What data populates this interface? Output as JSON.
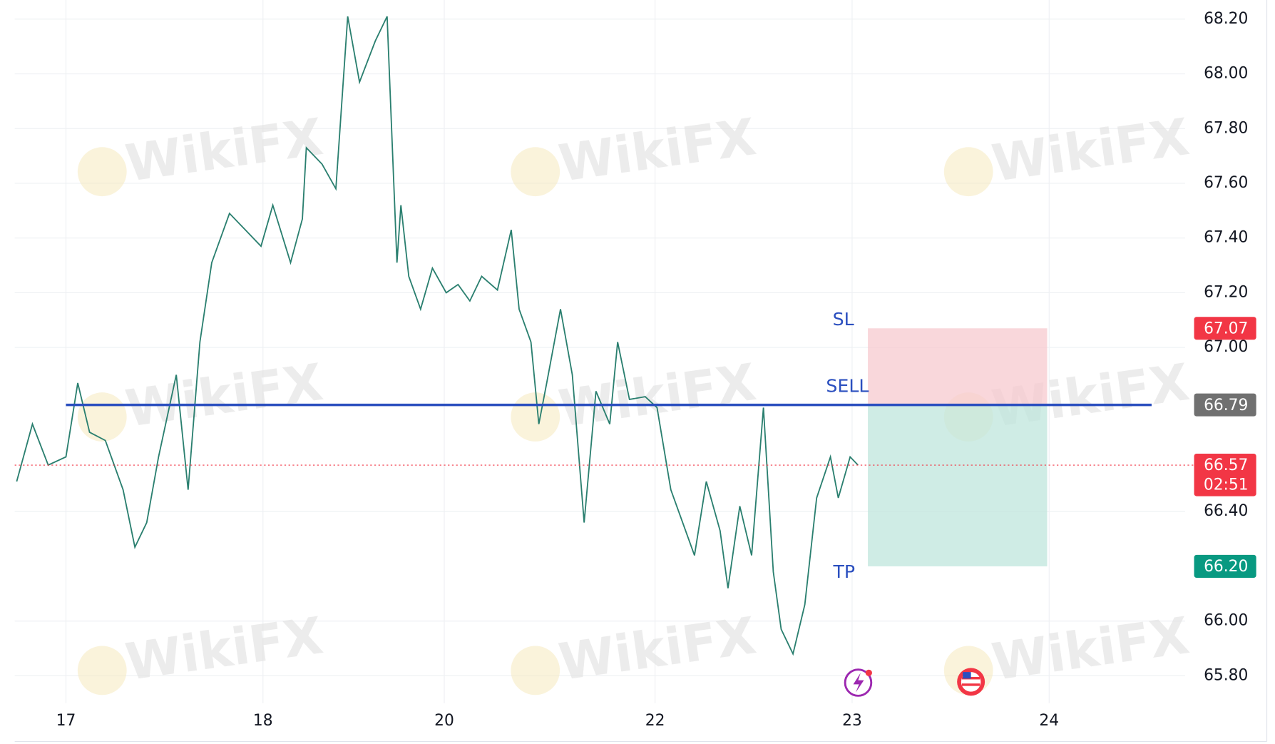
{
  "chart_data": {
    "type": "line",
    "watermark": "WikiFX",
    "xlim": [
      -0.26,
      5.68
    ],
    "xticks": [
      {
        "value": 0,
        "label": "17"
      },
      {
        "value": 1,
        "label": "18"
      },
      {
        "value": 1.92,
        "label": "20"
      },
      {
        "value": 2.99,
        "label": "22"
      },
      {
        "value": 3.99,
        "label": "23"
      },
      {
        "value": 4.99,
        "label": "24"
      }
    ],
    "ylim": [
      65.7,
      68.27
    ],
    "yticks": [
      {
        "value": 65.8,
        "label": "65.80"
      },
      {
        "value": 66.0,
        "label": "66.00"
      },
      {
        "value": 66.4,
        "label": "66.40"
      },
      {
        "value": 67.0,
        "label": "67.00"
      },
      {
        "value": 67.2,
        "label": "67.20"
      },
      {
        "value": 67.4,
        "label": "67.40"
      },
      {
        "value": 67.6,
        "label": "67.60"
      },
      {
        "value": 67.8,
        "label": "67.80"
      },
      {
        "value": 68.0,
        "label": "68.00"
      },
      {
        "value": 68.2,
        "label": "68.20"
      }
    ],
    "grid": true,
    "series": [
      {
        "color": "#2a7f6f",
        "x": [
          -0.25,
          -0.17,
          -0.09,
          0.0,
          0.06,
          0.12,
          0.2,
          0.29,
          0.35,
          0.41,
          0.47,
          0.56,
          0.62,
          0.68,
          0.74,
          0.83,
          0.91,
          0.99,
          1.05,
          1.14,
          1.2,
          1.22,
          1.3,
          1.37,
          1.43,
          1.49,
          1.57,
          1.63,
          1.68,
          1.7,
          1.74,
          1.8,
          1.86,
          1.93,
          1.99,
          2.05,
          2.11,
          2.19,
          2.26,
          2.3,
          2.36,
          2.4,
          2.44,
          2.51,
          2.57,
          2.63,
          2.69,
          2.76,
          2.8,
          2.86,
          2.94,
          3.0,
          3.07,
          3.13,
          3.19,
          3.25,
          3.32,
          3.36,
          3.42,
          3.48,
          3.54,
          3.59,
          3.63,
          3.69,
          3.75,
          3.81,
          3.88,
          3.92,
          3.98,
          4.02
        ],
        "values": [
          66.51,
          66.72,
          66.57,
          66.6,
          66.87,
          66.69,
          66.66,
          66.48,
          66.27,
          66.36,
          66.6,
          66.9,
          66.48,
          67.02,
          67.31,
          67.49,
          67.43,
          67.37,
          67.52,
          67.31,
          67.47,
          67.73,
          67.67,
          67.58,
          68.21,
          67.97,
          68.12,
          68.21,
          67.31,
          67.52,
          67.26,
          67.14,
          67.29,
          67.2,
          67.23,
          67.17,
          67.26,
          67.21,
          67.43,
          67.14,
          67.02,
          66.72,
          66.87,
          67.14,
          66.9,
          66.36,
          66.84,
          66.72,
          67.02,
          66.81,
          66.82,
          66.78,
          66.48,
          66.36,
          66.24,
          66.51,
          66.33,
          66.12,
          66.42,
          66.24,
          66.78,
          66.18,
          65.97,
          65.88,
          66.06,
          66.45,
          66.6,
          66.45,
          66.6,
          66.57
        ]
      }
    ],
    "entry_line": {
      "value": 66.79,
      "x_start": 0,
      "x_end": 5.51,
      "color": "#2b4fbf"
    },
    "position": {
      "entry": 66.79,
      "stop_loss": 67.07,
      "take_profit": 66.2,
      "x_start": 4.07,
      "x_end": 4.98,
      "stop_label": "SL",
      "entry_label": "SELL",
      "target_label": "TP"
    },
    "last_price": {
      "value": 66.57,
      "label": "66.57",
      "countdown": "02:51",
      "color": "#f23645"
    },
    "price_tags": [
      {
        "value": 67.07,
        "label": "67.07",
        "color": "#f23645"
      },
      {
        "value": 66.79,
        "label": "66.79",
        "color": "#707070"
      },
      {
        "value": 66.2,
        "label": "66.20",
        "color": "#089981"
      }
    ]
  }
}
